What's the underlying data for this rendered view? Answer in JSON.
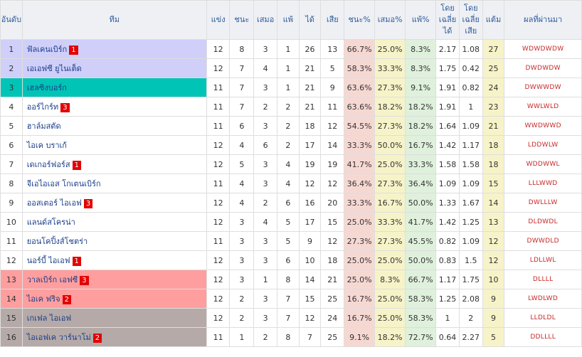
{
  "headers": {
    "rank": "อันดับ",
    "team": "ทีม",
    "played": "แข่ง",
    "win": "ชนะ",
    "draw": "เสมอ",
    "loss": "แพ้",
    "gf": "ได้",
    "ga": "เสีย",
    "win_pct": "ชนะ%",
    "draw_pct": "เสมอ%",
    "loss_pct": "แพ้%",
    "avg_gf": "โดยเฉลี่ยได้",
    "avg_ga": "โดยเฉลี่ยเสีย",
    "points": "แต้ม",
    "form": "ผลที่ผ่านมา"
  },
  "zone_colors": {
    "promotion": "#cfcffa",
    "playoff": "#00c4b5",
    "relegation_playoff": "#ff9e9e",
    "relegation": "#b5aaa8"
  },
  "rows": [
    {
      "rank": "1",
      "team": "ฟัลเคนเบิร์ก",
      "badge": "1",
      "played": "12",
      "win": "8",
      "draw": "3",
      "loss": "1",
      "gf": "26",
      "ga": "13",
      "win_pct": "66.7%",
      "draw_pct": "25.0%",
      "loss_pct": "8.3%",
      "avg_gf": "2.17",
      "avg_ga": "1.08",
      "points": "27",
      "form": "WDWDWDW",
      "zone": "cl"
    },
    {
      "rank": "2",
      "team": "เอเอฟซี ยูไนเต็ด",
      "badge": "",
      "played": "12",
      "win": "7",
      "draw": "4",
      "loss": "1",
      "gf": "21",
      "ga": "5",
      "win_pct": "58.3%",
      "draw_pct": "33.3%",
      "loss_pct": "8.3%",
      "avg_gf": "1.75",
      "avg_ga": "0.42",
      "points": "25",
      "form": "DWDWDW",
      "zone": "cl"
    },
    {
      "rank": "3",
      "team": "เฮลซิงบอร์ก",
      "badge": "",
      "played": "11",
      "win": "7",
      "draw": "3",
      "loss": "1",
      "gf": "21",
      "ga": "9",
      "win_pct": "63.6%",
      "draw_pct": "27.3%",
      "loss_pct": "9.1%",
      "avg_gf": "1.91",
      "avg_ga": "0.82",
      "points": "24",
      "form": "DWWWDW",
      "zone": "el"
    },
    {
      "rank": "4",
      "team": "ออร์ไกร์ท",
      "badge": "3",
      "played": "11",
      "win": "7",
      "draw": "2",
      "loss": "2",
      "gf": "21",
      "ga": "11",
      "win_pct": "63.6%",
      "draw_pct": "18.2%",
      "loss_pct": "18.2%",
      "avg_gf": "1.91",
      "avg_ga": "1",
      "points": "23",
      "form": "WWLWLD",
      "zone": ""
    },
    {
      "rank": "5",
      "team": "ฮาล์มสตัด",
      "badge": "",
      "played": "11",
      "win": "6",
      "draw": "3",
      "loss": "2",
      "gf": "18",
      "ga": "12",
      "win_pct": "54.5%",
      "draw_pct": "27.3%",
      "loss_pct": "18.2%",
      "avg_gf": "1.64",
      "avg_ga": "1.09",
      "points": "21",
      "form": "WWDWWD",
      "zone": ""
    },
    {
      "rank": "6",
      "team": "ไอเค บราเก้",
      "badge": "",
      "played": "12",
      "win": "4",
      "draw": "6",
      "loss": "2",
      "gf": "17",
      "ga": "14",
      "win_pct": "33.3%",
      "draw_pct": "50.0%",
      "loss_pct": "16.7%",
      "avg_gf": "1.42",
      "avg_ga": "1.17",
      "points": "18",
      "form": "LDDWLW",
      "zone": ""
    },
    {
      "rank": "7",
      "team": "เดเกอร์ฟอร์ส",
      "badge": "1",
      "played": "12",
      "win": "5",
      "draw": "3",
      "loss": "4",
      "gf": "19",
      "ga": "19",
      "win_pct": "41.7%",
      "draw_pct": "25.0%",
      "loss_pct": "33.3%",
      "avg_gf": "1.58",
      "avg_ga": "1.58",
      "points": "18",
      "form": "WDDWWL",
      "zone": ""
    },
    {
      "rank": "8",
      "team": "จีเอไอเอส โกเตนเบิร์ก",
      "badge": "",
      "played": "11",
      "win": "4",
      "draw": "3",
      "loss": "4",
      "gf": "12",
      "ga": "12",
      "win_pct": "36.4%",
      "draw_pct": "27.3%",
      "loss_pct": "36.4%",
      "avg_gf": "1.09",
      "avg_ga": "1.09",
      "points": "15",
      "form": "LLLWWD",
      "zone": ""
    },
    {
      "rank": "9",
      "team": "ออสเตอร์ ไอเอฟ",
      "badge": "3",
      "played": "12",
      "win": "4",
      "draw": "2",
      "loss": "6",
      "gf": "16",
      "ga": "20",
      "win_pct": "33.3%",
      "draw_pct": "16.7%",
      "loss_pct": "50.0%",
      "avg_gf": "1.33",
      "avg_ga": "1.67",
      "points": "14",
      "form": "DWLLLW",
      "zone": ""
    },
    {
      "rank": "10",
      "team": "แลนด์สโครน่า",
      "badge": "",
      "played": "12",
      "win": "3",
      "draw": "4",
      "loss": "5",
      "gf": "17",
      "ga": "15",
      "win_pct": "25.0%",
      "draw_pct": "33.3%",
      "loss_pct": "41.7%",
      "avg_gf": "1.42",
      "avg_ga": "1.25",
      "points": "13",
      "form": "DLDWDL",
      "zone": ""
    },
    {
      "rank": "11",
      "team": "ยอนโคปิ้งส์โชตร่า",
      "badge": "",
      "played": "11",
      "win": "3",
      "draw": "3",
      "loss": "5",
      "gf": "9",
      "ga": "12",
      "win_pct": "27.3%",
      "draw_pct": "27.3%",
      "loss_pct": "45.5%",
      "avg_gf": "0.82",
      "avg_ga": "1.09",
      "points": "12",
      "form": "DWWDLD",
      "zone": ""
    },
    {
      "rank": "12",
      "team": "นอร์บี้ ไอเอฟ",
      "badge": "1",
      "played": "12",
      "win": "3",
      "draw": "3",
      "loss": "6",
      "gf": "10",
      "ga": "18",
      "win_pct": "25.0%",
      "draw_pct": "25.0%",
      "loss_pct": "50.0%",
      "avg_gf": "0.83",
      "avg_ga": "1.5",
      "points": "12",
      "form": "LDLLWL",
      "zone": ""
    },
    {
      "rank": "13",
      "team": "วาลเบิร์ก เอฟซี",
      "badge": "3",
      "played": "12",
      "win": "3",
      "draw": "1",
      "loss": "8",
      "gf": "14",
      "ga": "21",
      "win_pct": "25.0%",
      "draw_pct": "8.3%",
      "loss_pct": "66.7%",
      "avg_gf": "1.17",
      "avg_ga": "1.75",
      "points": "10",
      "form": "DLLLL",
      "zone": "rp"
    },
    {
      "rank": "14",
      "team": "ไอเค ฟริจ",
      "badge": "2",
      "played": "12",
      "win": "2",
      "draw": "3",
      "loss": "7",
      "gf": "15",
      "ga": "25",
      "win_pct": "16.7%",
      "draw_pct": "25.0%",
      "loss_pct": "58.3%",
      "avg_gf": "1.25",
      "avg_ga": "2.08",
      "points": "9",
      "form": "LWDLWD",
      "zone": "rp"
    },
    {
      "rank": "15",
      "team": "เกเฟล ไอเอฟ",
      "badge": "",
      "played": "12",
      "win": "2",
      "draw": "3",
      "loss": "7",
      "gf": "12",
      "ga": "24",
      "win_pct": "16.7%",
      "draw_pct": "25.0%",
      "loss_pct": "58.3%",
      "avg_gf": "1",
      "avg_ga": "2",
      "points": "9",
      "form": "LLDLDL",
      "zone": "rl"
    },
    {
      "rank": "16",
      "team": "ไอเอฟเค วาร์นาโม่",
      "badge": "2",
      "played": "11",
      "win": "1",
      "draw": "2",
      "loss": "8",
      "gf": "7",
      "ga": "25",
      "win_pct": "9.1%",
      "draw_pct": "18.2%",
      "loss_pct": "72.7%",
      "avg_gf": "0.64",
      "avg_ga": "2.27",
      "points": "5",
      "form": "DDLLLL",
      "zone": "rl"
    }
  ]
}
